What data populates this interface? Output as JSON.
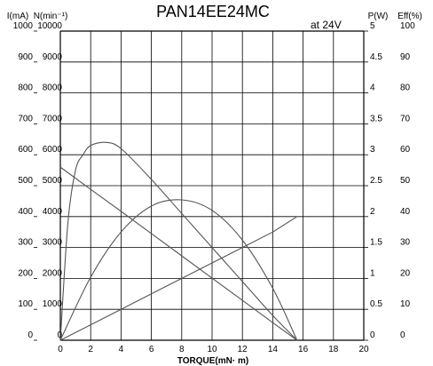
{
  "chart_data": {
    "type": "line",
    "title": "PAN14EE24MC",
    "subtitle": "at 24V",
    "xlabel": "TORQUE(mN· m)",
    "xlim": [
      0,
      20
    ],
    "x_ticks": [
      "0",
      "2",
      "4",
      "6",
      "8",
      "10",
      "12",
      "14",
      "16",
      "18",
      "20"
    ],
    "axes": {
      "current": {
        "label": "I(mA)",
        "lim": [
          0,
          1000
        ],
        "ticks": [
          "0",
          "100",
          "200",
          "300",
          "400",
          "500",
          "600",
          "700",
          "800",
          "900",
          "1000"
        ]
      },
      "speed": {
        "label": "N(min⁻¹)",
        "lim": [
          0,
          10000
        ],
        "ticks": [
          "0",
          "1000",
          "2000",
          "3000",
          "4000",
          "5000",
          "6000",
          "7000",
          "8000",
          "9000",
          "10000"
        ]
      },
      "power": {
        "label": "P(W)",
        "lim": [
          0,
          5
        ],
        "ticks": [
          "0",
          "0.5",
          "1",
          "1.5",
          "2",
          "2.5",
          "3",
          "3.5",
          "4",
          "4.5",
          "5"
        ]
      },
      "efficiency": {
        "label": "Eff(%)",
        "lim": [
          0,
          100
        ],
        "ticks": [
          "0",
          "10",
          "20",
          "30",
          "40",
          "50",
          "60",
          "70",
          "80",
          "90",
          "100"
        ]
      }
    },
    "grid": true,
    "series": [
      {
        "axis": "speed",
        "color": "#555555",
        "x": [
          0,
          2,
          4,
          6,
          8,
          10,
          12,
          14,
          15.6
        ],
        "y": [
          5600,
          4880,
          4170,
          3450,
          2730,
          2010,
          1290,
          570,
          0
        ]
      },
      {
        "axis": "current",
        "color": "#555555",
        "x": [
          0,
          2,
          4,
          6,
          8,
          10,
          12,
          14,
          15.6
        ],
        "y": [
          0,
          50,
          100,
          150,
          200,
          250,
          300,
          350,
          400
        ]
      },
      {
        "axis": "power",
        "color": "#555555",
        "x": [
          0,
          2,
          4,
          6,
          8,
          10,
          12,
          14,
          15.6
        ],
        "y": [
          0,
          1.02,
          1.75,
          2.17,
          2.27,
          2.1,
          1.62,
          0.84,
          0
        ]
      },
      {
        "axis": "efficiency",
        "color": "#555555",
        "x": [
          0,
          0.5,
          1,
          1.5,
          2,
          3,
          4,
          6,
          8,
          10,
          12,
          14,
          15.6
        ],
        "y": [
          0,
          38,
          55,
          60,
          63,
          64,
          62,
          52,
          41,
          30,
          19,
          8,
          0
        ]
      }
    ]
  }
}
